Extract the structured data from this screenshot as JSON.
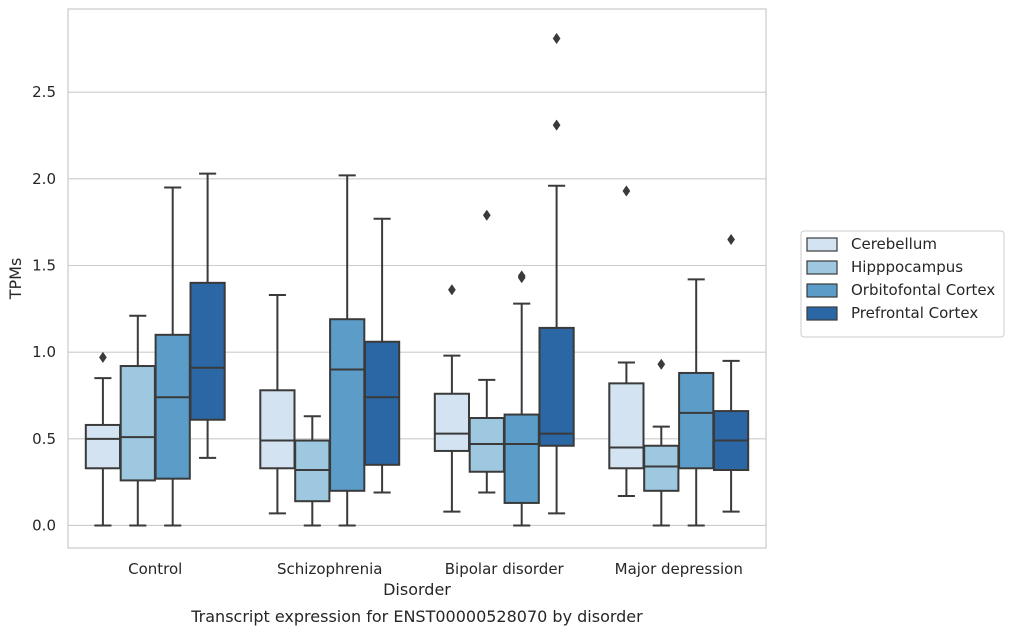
{
  "chart_data": {
    "type": "box",
    "title": "",
    "caption": "Transcript expression for ENST00000528070 by disorder",
    "xlabel": "Disorder",
    "ylabel": "TPMs",
    "ylim": [
      -0.13,
      2.98
    ],
    "yticks": [
      0.0,
      0.5,
      1.0,
      1.5,
      2.0,
      2.5
    ],
    "ytick_labels": [
      "0.0",
      "0.5",
      "1.0",
      "1.5",
      "2.0",
      "2.5"
    ],
    "grid": "horizontal",
    "legend_position": "right",
    "categories": [
      "Control",
      "Schizophrenia",
      "Bipolar disorder",
      "Major depression"
    ],
    "series": [
      {
        "name": "Cerebellum",
        "color": "#d3e3f2",
        "boxes": [
          {
            "whislo": 0.0,
            "q1": 0.33,
            "median": 0.5,
            "q3": 0.58,
            "whishi": 0.85,
            "fliers": [
              0.97
            ]
          },
          {
            "whislo": 0.07,
            "q1": 0.33,
            "median": 0.49,
            "q3": 0.78,
            "whishi": 1.33,
            "fliers": []
          },
          {
            "whislo": 0.08,
            "q1": 0.43,
            "median": 0.53,
            "q3": 0.76,
            "whishi": 0.98,
            "fliers": [
              1.36
            ]
          },
          {
            "whislo": 0.17,
            "q1": 0.33,
            "median": 0.45,
            "q3": 0.82,
            "whishi": 0.94,
            "fliers": [
              1.93
            ]
          }
        ]
      },
      {
        "name": "Hipppocampus",
        "color": "#9dc8e0",
        "boxes": [
          {
            "whislo": 0.0,
            "q1": 0.26,
            "median": 0.51,
            "q3": 0.92,
            "whishi": 1.21,
            "fliers": []
          },
          {
            "whislo": 0.0,
            "q1": 0.14,
            "median": 0.32,
            "q3": 0.49,
            "whishi": 0.63,
            "fliers": []
          },
          {
            "whislo": 0.19,
            "q1": 0.31,
            "median": 0.47,
            "q3": 0.62,
            "whishi": 0.84,
            "fliers": [
              1.79
            ]
          },
          {
            "whislo": 0.0,
            "q1": 0.2,
            "median": 0.34,
            "q3": 0.46,
            "whishi": 0.57,
            "fliers": [
              0.93
            ]
          }
        ]
      },
      {
        "name": "Orbitofontal Cortex",
        "color": "#5b9cc9",
        "boxes": [
          {
            "whislo": 0.0,
            "q1": 0.27,
            "median": 0.74,
            "q3": 1.1,
            "whishi": 1.95,
            "fliers": []
          },
          {
            "whislo": 0.0,
            "q1": 0.2,
            "median": 0.9,
            "q3": 1.19,
            "whishi": 2.02,
            "fliers": []
          },
          {
            "whislo": 0.0,
            "q1": 0.13,
            "median": 0.47,
            "q3": 0.64,
            "whishi": 1.28,
            "fliers": [
              1.43,
              1.44
            ]
          },
          {
            "whislo": 0.0,
            "q1": 0.33,
            "median": 0.65,
            "q3": 0.88,
            "whishi": 1.42,
            "fliers": []
          }
        ]
      },
      {
        "name": "Prefrontal Cortex",
        "color": "#2b67a5",
        "boxes": [
          {
            "whislo": 0.39,
            "q1": 0.61,
            "median": 0.91,
            "q3": 1.4,
            "whishi": 2.03,
            "fliers": []
          },
          {
            "whislo": 0.19,
            "q1": 0.35,
            "median": 0.74,
            "q3": 1.06,
            "whishi": 1.77,
            "fliers": []
          },
          {
            "whislo": 0.07,
            "q1": 0.46,
            "median": 0.53,
            "q3": 1.14,
            "whishi": 1.96,
            "fliers": [
              2.31,
              2.81
            ]
          },
          {
            "whislo": 0.08,
            "q1": 0.32,
            "median": 0.49,
            "q3": 0.66,
            "whishi": 0.95,
            "fliers": [
              1.65
            ]
          }
        ]
      }
    ]
  }
}
